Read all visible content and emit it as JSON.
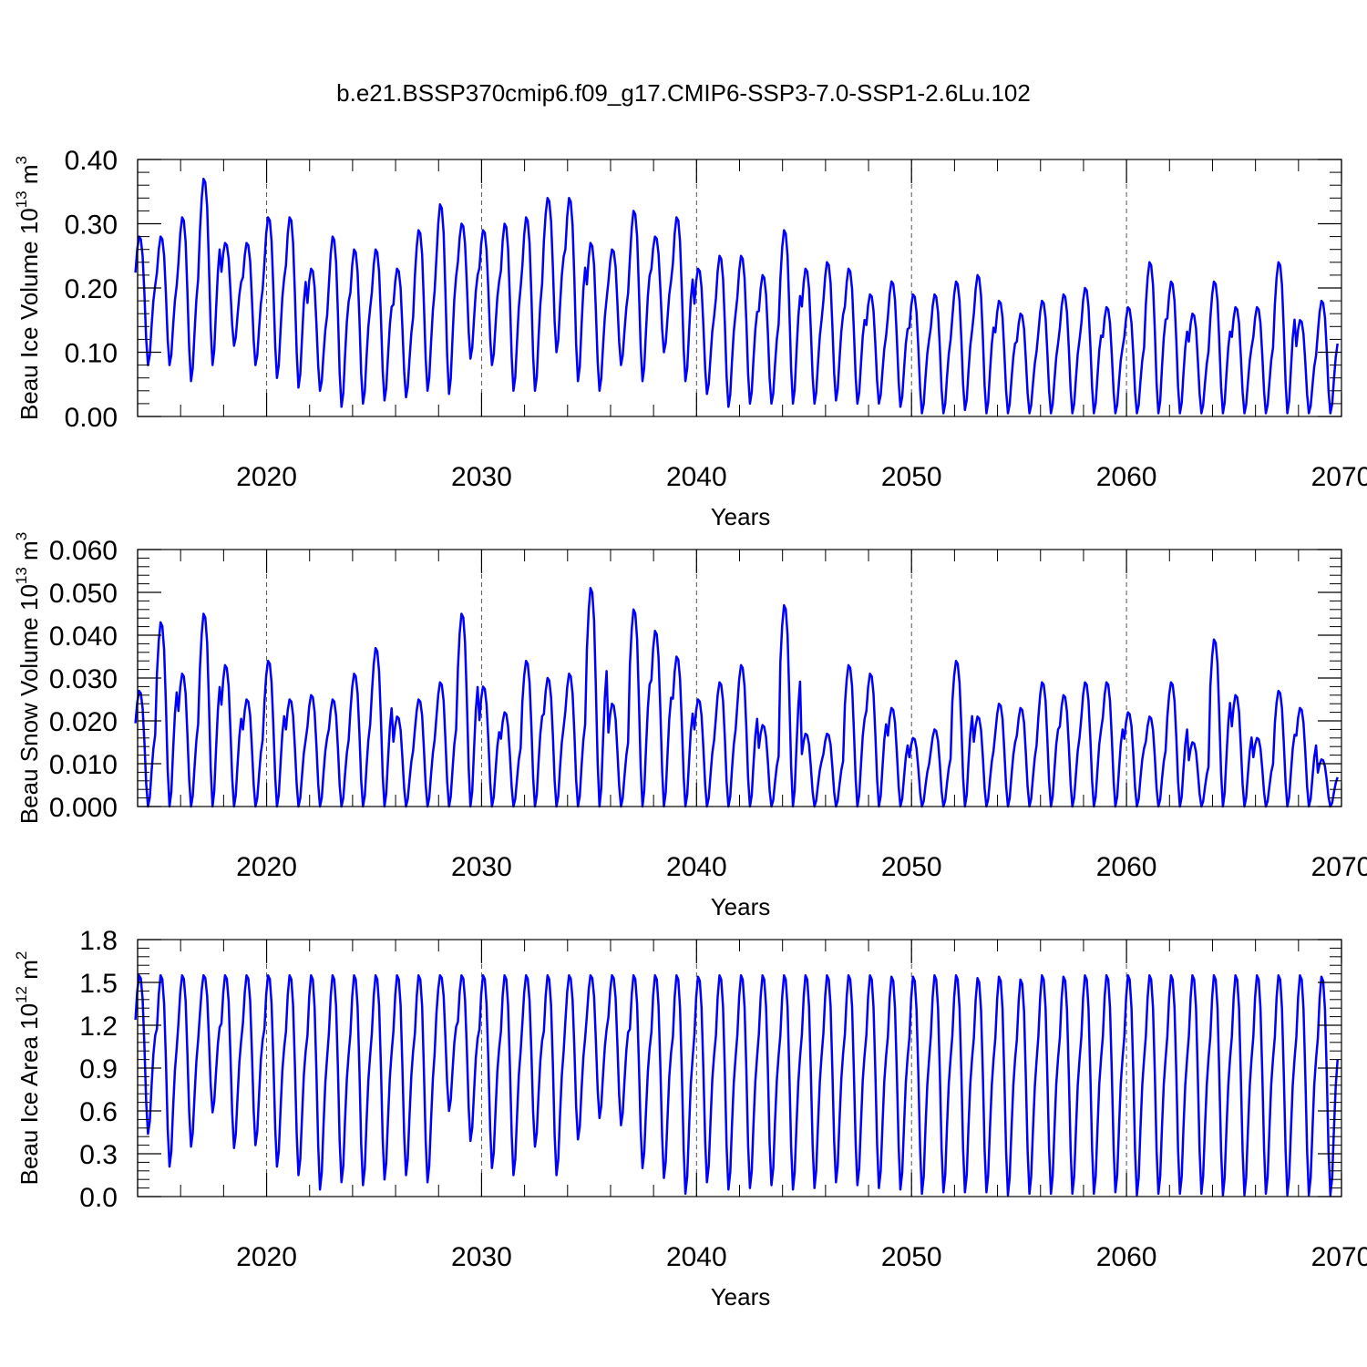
{
  "title": "b.e21.BSSP370cmip6.f09_g17.CMIP6-SSP3-7.0-SSP1-2.6Lu.102",
  "chart_data": [
    {
      "type": "line",
      "ylabel": "Beau Ice Volume 10",
      "ylabel_exp": "13",
      "ylabel_unit": "m",
      "ylabel_unit_exp": "3",
      "xlabel": "Years",
      "xlim": [
        2014,
        2070
      ],
      "ylim": [
        0,
        0.4
      ],
      "ytick_labels": [
        "0.00",
        "0.10",
        "0.20",
        "0.30",
        "0.40"
      ],
      "ytick_values": [
        0,
        0.1,
        0.2,
        0.3,
        0.4
      ],
      "xtick_labels": [
        "2020",
        "2030",
        "2040",
        "2050",
        "2060",
        "2070"
      ],
      "xtick_values": [
        2020,
        2030,
        2040,
        2050,
        2060,
        2070
      ],
      "series_color": "#0000ff",
      "annual_max": [
        0.28,
        0.28,
        0.31,
        0.37,
        0.27,
        0.27,
        0.31,
        0.31,
        0.23,
        0.28,
        0.26,
        0.26,
        0.23,
        0.29,
        0.33,
        0.3,
        0.29,
        0.3,
        0.31,
        0.34,
        0.34,
        0.27,
        0.26,
        0.32,
        0.28,
        0.31,
        0.23,
        0.25,
        0.25,
        0.22,
        0.29,
        0.23,
        0.24,
        0.23,
        0.19,
        0.21,
        0.19,
        0.19,
        0.21,
        0.22,
        0.18,
        0.16,
        0.18,
        0.19,
        0.2,
        0.17,
        0.17,
        0.24,
        0.21,
        0.16,
        0.21,
        0.17,
        0.17,
        0.24,
        0.15,
        0.18
      ],
      "annual_min": [
        0.08,
        0.08,
        0.055,
        0.08,
        0.11,
        0.08,
        0.06,
        0.045,
        0.04,
        0.015,
        0.02,
        0.025,
        0.03,
        0.04,
        0.035,
        0.09,
        0.08,
        0.04,
        0.04,
        0.1,
        0.055,
        0.04,
        0.08,
        0.055,
        0.1,
        0.055,
        0.035,
        0.015,
        0.02,
        0.02,
        0.02,
        0.02,
        0.025,
        0.02,
        0.02,
        0.015,
        0.005,
        0.005,
        0.01,
        0.005,
        0.005,
        0.005,
        0.005,
        0.005,
        0.005,
        0.005,
        0.005,
        0.005,
        0.005,
        0.005,
        0.005,
        0.005,
        0.005,
        0.005,
        0.005,
        0.005
      ]
    },
    {
      "type": "line",
      "ylabel": "Beau Snow Volume 10",
      "ylabel_exp": "13",
      "ylabel_unit": "m",
      "ylabel_unit_exp": "3",
      "xlabel": "Years",
      "xlim": [
        2014,
        2070
      ],
      "ylim": [
        0,
        0.06
      ],
      "ytick_labels": [
        "0.000",
        "0.010",
        "0.020",
        "0.030",
        "0.040",
        "0.050",
        "0.060"
      ],
      "ytick_values": [
        0,
        0.01,
        0.02,
        0.03,
        0.04,
        0.05,
        0.06
      ],
      "xtick_labels": [
        "2020",
        "2030",
        "2040",
        "2050",
        "2060",
        "2070"
      ],
      "xtick_values": [
        2020,
        2030,
        2040,
        2050,
        2060,
        2070
      ],
      "series_color": "#0000ff",
      "annual_max": [
        0.027,
        0.043,
        0.031,
        0.045,
        0.033,
        0.025,
        0.034,
        0.025,
        0.026,
        0.025,
        0.031,
        0.037,
        0.021,
        0.025,
        0.029,
        0.045,
        0.028,
        0.022,
        0.034,
        0.03,
        0.031,
        0.051,
        0.024,
        0.046,
        0.041,
        0.035,
        0.025,
        0.029,
        0.033,
        0.019,
        0.047,
        0.017,
        0.017,
        0.033,
        0.031,
        0.023,
        0.016,
        0.018,
        0.034,
        0.021,
        0.024,
        0.023,
        0.029,
        0.026,
        0.029,
        0.029,
        0.022,
        0.021,
        0.029,
        0.015,
        0.039,
        0.026,
        0.016,
        0.027,
        0.023,
        0.011
      ],
      "annual_min": [
        0,
        0,
        0,
        0,
        0,
        0,
        0,
        0,
        0,
        0,
        0,
        0,
        0,
        0,
        0,
        0,
        0,
        0,
        0,
        0,
        0,
        0,
        0,
        0,
        0,
        0,
        0,
        0,
        0,
        0,
        0,
        0,
        0,
        0,
        0,
        0,
        0,
        0,
        0,
        0,
        0,
        0,
        0,
        0,
        0,
        0,
        0,
        0,
        0,
        0,
        0,
        0,
        0,
        0,
        0,
        0
      ]
    },
    {
      "type": "line",
      "ylabel": "Beau Ice Area 10",
      "ylabel_exp": "12",
      "ylabel_unit": "m",
      "ylabel_unit_exp": "2",
      "xlabel": "Years",
      "xlim": [
        2014,
        2070
      ],
      "ylim": [
        0,
        1.8
      ],
      "ytick_labels": [
        "0.0",
        "0.3",
        "0.6",
        "0.9",
        "1.2",
        "1.5",
        "1.8"
      ],
      "ytick_values": [
        0,
        0.3,
        0.6,
        0.9,
        1.2,
        1.5,
        1.8
      ],
      "xtick_labels": [
        "2020",
        "2030",
        "2040",
        "2050",
        "2060",
        "2070"
      ],
      "xtick_values": [
        2020,
        2030,
        2040,
        2050,
        2060,
        2070
      ],
      "series_color": "#0000ff",
      "annual_max": [
        1.55,
        1.55,
        1.55,
        1.55,
        1.55,
        1.55,
        1.55,
        1.55,
        1.55,
        1.55,
        1.55,
        1.55,
        1.55,
        1.55,
        1.55,
        1.55,
        1.55,
        1.55,
        1.55,
        1.55,
        1.55,
        1.55,
        1.55,
        1.55,
        1.55,
        1.55,
        1.54,
        1.55,
        1.55,
        1.55,
        1.55,
        1.55,
        1.55,
        1.55,
        1.55,
        1.54,
        1.54,
        1.55,
        1.55,
        1.53,
        1.54,
        1.52,
        1.55,
        1.54,
        1.55,
        1.55,
        1.55,
        1.55,
        1.55,
        1.55,
        1.55,
        1.55,
        1.55,
        1.55,
        1.55,
        1.54
      ],
      "annual_min": [
        0.44,
        0.21,
        0.35,
        0.59,
        0.34,
        0.36,
        0.21,
        0.15,
        0.05,
        0.1,
        0.08,
        0.12,
        0.15,
        0.1,
        0.6,
        0.39,
        0.2,
        0.15,
        0.35,
        0.15,
        0.4,
        0.55,
        0.5,
        0.2,
        0.13,
        0.02,
        0.1,
        0.05,
        0.06,
        0.08,
        0.05,
        0.06,
        0.1,
        0.08,
        0.06,
        0.05,
        0.02,
        0.03,
        0.03,
        0.03,
        0.01,
        0.02,
        0.02,
        0.02,
        0.02,
        0.03,
        0.01,
        0.02,
        0.02,
        0.02,
        0.01,
        0.01,
        0.02,
        0.01,
        0.01,
        0.01
      ]
    }
  ]
}
